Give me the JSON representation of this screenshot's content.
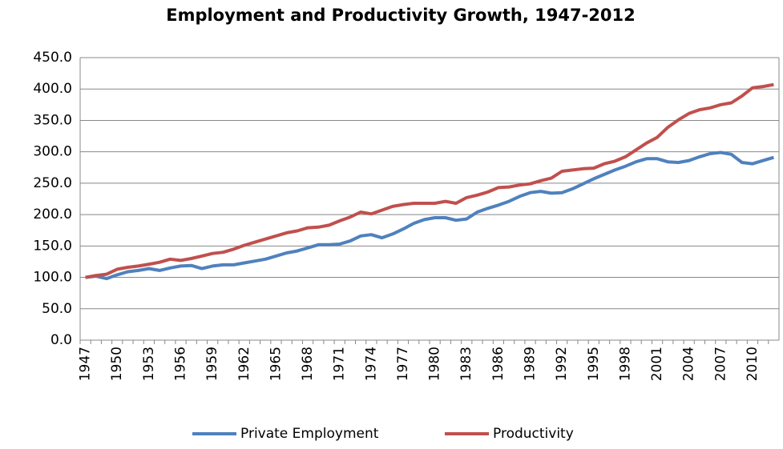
{
  "chart_data": {
    "type": "line",
    "title": "Employment and Productivity Growth, 1947-2012",
    "categories": [
      "1947",
      null,
      null,
      "1950",
      null,
      null,
      "1953",
      null,
      null,
      "1956",
      null,
      null,
      "1959",
      null,
      null,
      "1962",
      null,
      null,
      "1965",
      null,
      null,
      "1968",
      null,
      null,
      "1971",
      null,
      null,
      "1974",
      null,
      null,
      "1977",
      null,
      null,
      "1980",
      null,
      null,
      "1983",
      null,
      null,
      "1986",
      null,
      null,
      "1989",
      null,
      null,
      "1992",
      null,
      null,
      "1995",
      null,
      null,
      "1998",
      null,
      null,
      "2001",
      null,
      null,
      "2004",
      null,
      null,
      "2007",
      null,
      null,
      "2010",
      null,
      null
    ],
    "series": [
      {
        "name": "Private Employment",
        "color": "#4f81bd",
        "values": [
          100,
          102,
          98,
          104,
          109,
          111,
          114,
          111,
          115,
          118,
          119,
          114,
          118,
          120,
          120,
          123,
          126,
          129,
          134,
          139,
          142,
          147,
          152,
          152,
          153,
          158,
          166,
          168,
          163,
          169,
          177,
          186,
          192,
          195,
          195,
          191,
          193,
          204,
          210,
          215,
          221,
          229,
          235,
          237,
          234,
          235,
          241,
          249,
          257,
          264,
          271,
          277,
          284,
          289,
          289,
          284,
          283,
          286,
          292,
          297,
          299,
          296,
          283,
          281,
          286,
          291
        ]
      },
      {
        "name": "Productivity",
        "color": "#c0504d",
        "values": [
          100,
          103,
          105,
          113,
          116,
          118,
          121,
          124,
          129,
          127,
          130,
          134,
          138,
          140,
          145,
          151,
          156,
          161,
          166,
          171,
          174,
          179,
          180,
          183,
          190,
          196,
          204,
          201,
          207,
          213,
          216,
          218,
          218,
          218,
          221,
          218,
          227,
          231,
          236,
          243,
          244,
          247,
          249,
          254,
          258,
          269,
          271,
          273,
          274,
          281,
          285,
          292,
          303,
          314,
          323,
          339,
          351,
          361,
          367,
          370,
          375,
          378,
          389,
          402,
          404,
          407
        ]
      }
    ],
    "ylim": [
      0,
      450
    ],
    "yticks": [
      {
        "value": 0,
        "label": "0.0"
      },
      {
        "value": 50,
        "label": "50.0"
      },
      {
        "value": 100,
        "label": "100.0"
      },
      {
        "value": 150,
        "label": "150.0"
      },
      {
        "value": 200,
        "label": "200.0"
      },
      {
        "value": 250,
        "label": "250.0"
      },
      {
        "value": 300,
        "label": "300.0"
      },
      {
        "value": 350,
        "label": "350.0"
      },
      {
        "value": 400,
        "label": "400.0"
      },
      {
        "value": 450,
        "label": "450.0"
      }
    ],
    "grid": true,
    "legend": "bottom"
  }
}
